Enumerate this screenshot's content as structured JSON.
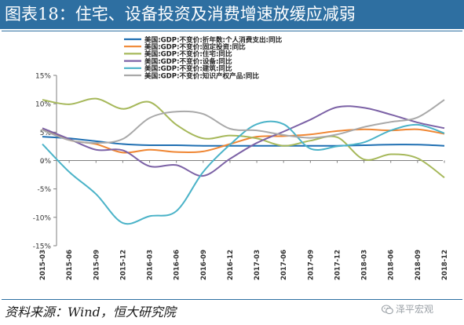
{
  "header": {
    "title": "图表18：住宅、设备投资及消费增速放缓应减弱"
  },
  "footer": {
    "source": "资料来源：Wind，恒大研究院",
    "watermark": "泽平宏观"
  },
  "icons": {
    "watermark": "wechat-icon"
  },
  "chart_data": {
    "type": "line",
    "x": [
      "2015-03",
      "2015-06",
      "2015-09",
      "2015-12",
      "2016-03",
      "2016-06",
      "2016-09",
      "2016-12",
      "2017-03",
      "2017-06",
      "2017-09",
      "2017-12",
      "2018-03",
      "2018-06",
      "2018-09",
      "2018-12"
    ],
    "ylim": [
      -15,
      15
    ],
    "yticks": [
      15,
      10,
      5,
      0,
      -5,
      -10,
      -15
    ],
    "ytick_labels": [
      "15%",
      "10%",
      "5%",
      "0%",
      "-5%",
      "-10%",
      "-15%"
    ],
    "grid": false,
    "legend_position": "top",
    "series": [
      {
        "name": "美国:GDP:不变价:折年数:个人消费支出:同比",
        "color": "#1f6fb2",
        "values": [
          4.2,
          3.9,
          3.4,
          2.9,
          2.7,
          2.7,
          2.6,
          2.6,
          2.6,
          2.6,
          2.6,
          2.6,
          2.7,
          2.8,
          2.8,
          2.6
        ]
      },
      {
        "name": "美国:GDP:不变价:固定投资:同比",
        "color": "#ef8633",
        "values": [
          5.6,
          3.6,
          2.9,
          1.4,
          1.9,
          1.5,
          1.6,
          2.9,
          4.2,
          4.3,
          4.6,
          5.2,
          5.5,
          5.3,
          5.5,
          4.7
        ]
      },
      {
        "name": "美国:GDP:不变价:住宅:同比",
        "color": "#a6b85a",
        "values": [
          10.7,
          9.9,
          10.9,
          9.1,
          10.3,
          6.3,
          3.9,
          4.4,
          3.9,
          2.6,
          3.5,
          4.1,
          0.2,
          1.1,
          0.4,
          -3.0
        ]
      },
      {
        "name": "美国:GDP:不变价:设备:同比",
        "color": "#7c62a6",
        "values": [
          5.7,
          3.8,
          1.9,
          1.8,
          -1.0,
          -0.8,
          -2.7,
          0.3,
          3.1,
          5.1,
          7.2,
          9.4,
          9.3,
          8.1,
          6.7,
          5.7
        ]
      },
      {
        "name": "美国:GDP:不变价:建筑:同比",
        "color": "#4bb3c8",
        "values": [
          2.9,
          -2.0,
          -5.9,
          -11.0,
          -9.8,
          -8.9,
          -2.0,
          2.8,
          6.4,
          6.4,
          2.1,
          2.5,
          3.2,
          5.3,
          6.3,
          4.8
        ]
      },
      {
        "name": "美国:GDP:不变价:知识产权产品:同比",
        "color": "#a9a9a9",
        "values": [
          5.4,
          3.6,
          3.1,
          3.8,
          7.5,
          8.6,
          8.2,
          5.6,
          5.3,
          4.5,
          4.0,
          4.6,
          5.9,
          6.8,
          7.6,
          10.7
        ]
      }
    ]
  }
}
